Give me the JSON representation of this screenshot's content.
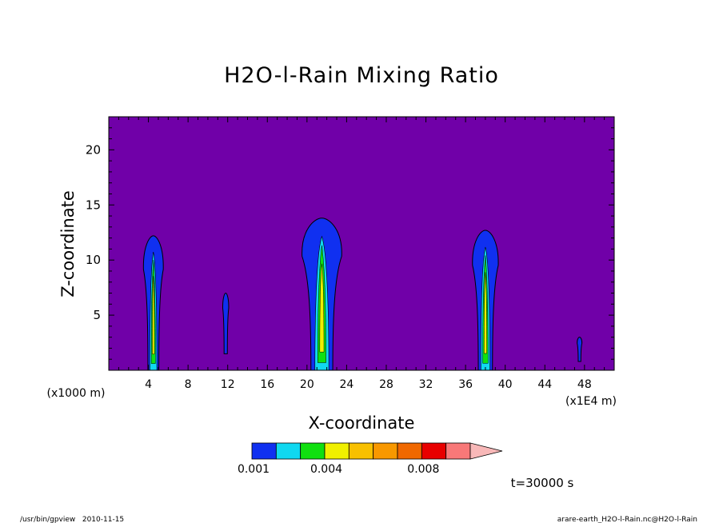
{
  "chart_data": {
    "type": "contour",
    "title": "H2O-l-Rain Mixing Ratio",
    "xlabel": "X-coordinate",
    "ylabel": "Z-coordinate",
    "x_unit_left": "(x1000 m)",
    "x_unit_right": "(x1E4 m)",
    "x_ticks": [
      "4",
      "8",
      "12",
      "16",
      "20",
      "24",
      "28",
      "32",
      "36",
      "40",
      "44",
      "48"
    ],
    "y_ticks": [
      "5",
      "10",
      "15",
      "20"
    ],
    "xlim": [
      0,
      51
    ],
    "ylim": [
      0,
      23
    ],
    "background_color": "#7000a8",
    "colorbar": {
      "colors": [
        "#1030f0",
        "#10d8f0",
        "#10e010",
        "#f0f000",
        "#f8c000",
        "#f89800",
        "#f06800",
        "#e80000",
        "#f87878",
        "#f8b8b8"
      ],
      "labels": [
        {
          "text": "0.001",
          "level": 1
        },
        {
          "text": "0.004",
          "level": 4
        },
        {
          "text": "0.008",
          "level": 8
        }
      ],
      "extend": "max"
    },
    "time_label": "t=30000 s",
    "cells": [
      {
        "x_center": 4.5,
        "top": 12.2,
        "bottom": 0,
        "halfwidth": 1.0
      },
      {
        "x_center": 11.8,
        "top": 7.0,
        "bottom": 1.5,
        "halfwidth": 0.3
      },
      {
        "x_center": 21.5,
        "top": 13.8,
        "bottom": 0,
        "halfwidth": 2.0
      },
      {
        "x_center": 38.0,
        "top": 12.7,
        "bottom": 0,
        "halfwidth": 1.3
      },
      {
        "x_center": 47.5,
        "top": 3.0,
        "bottom": 0.8,
        "halfwidth": 0.15
      }
    ]
  },
  "footer": {
    "left": "/usr/bin/gpview   2010-11-15",
    "right": "arare-earth_H2O-l-Rain.nc@H2O-l-Rain"
  }
}
